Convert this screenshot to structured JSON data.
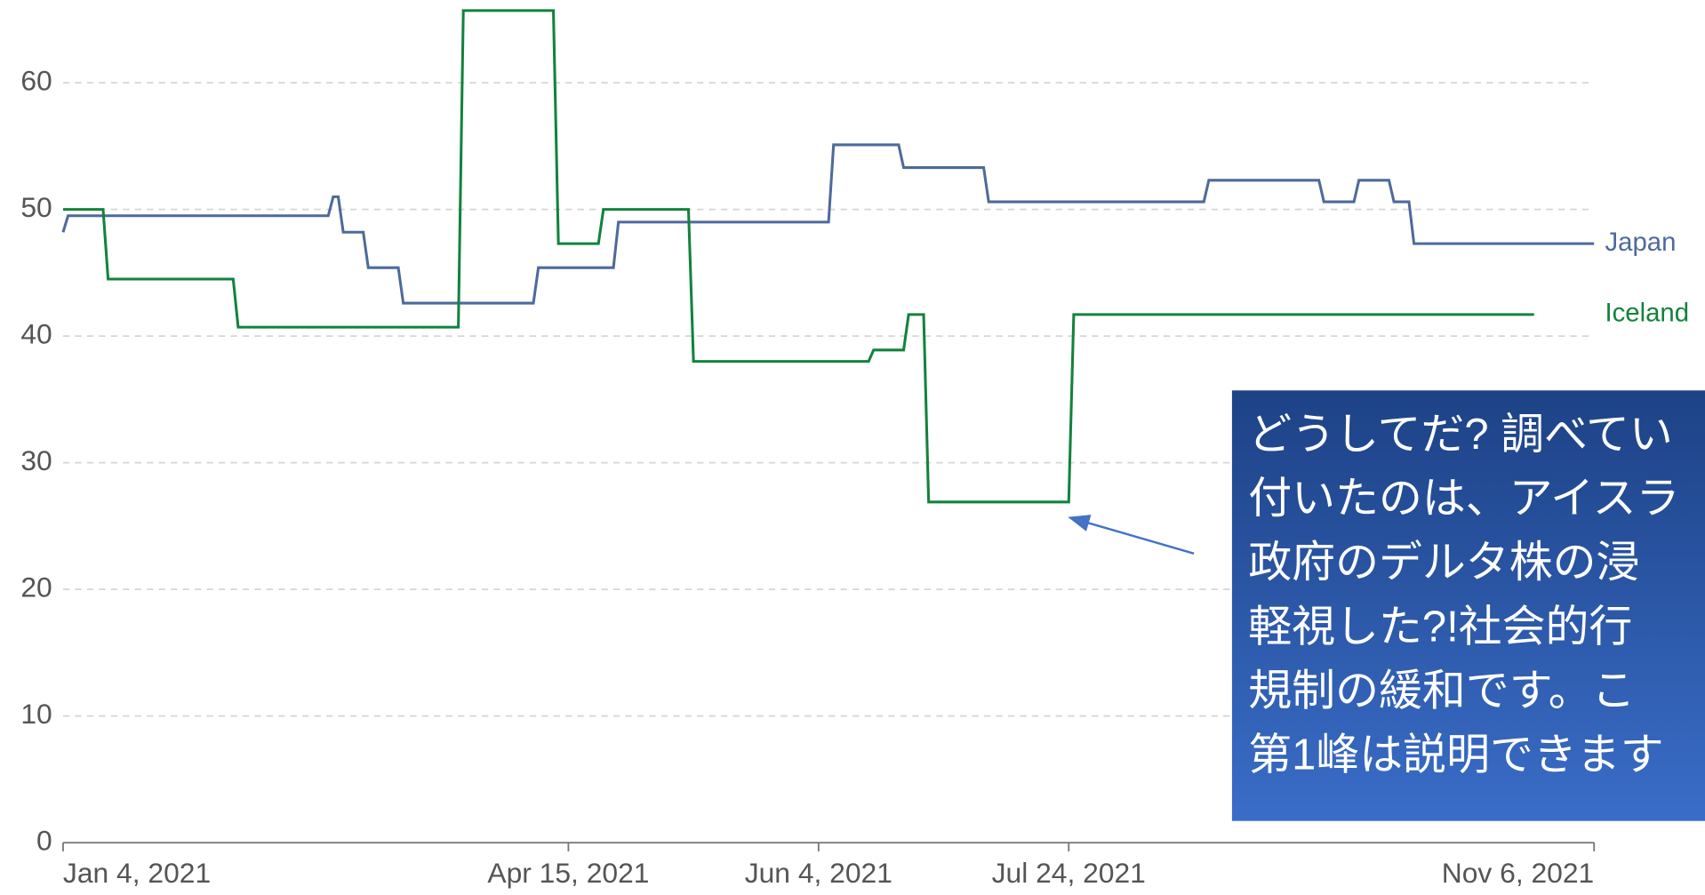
{
  "chart_data": {
    "type": "line",
    "xlim": [
      "2021-01-04",
      "2021-11-06"
    ],
    "xticks": [
      {
        "value": "2021-01-04",
        "label": "Jan 4, 2021"
      },
      {
        "value": "2021-04-15",
        "label": "Apr 15, 2021"
      },
      {
        "value": "2021-06-04",
        "label": "Jun 4, 2021"
      },
      {
        "value": "2021-07-24",
        "label": "Jul 24, 2021"
      },
      {
        "value": "2021-11-06",
        "label": "Nov 6, 2021"
      }
    ],
    "ylim": [
      0,
      66
    ],
    "yticks": [
      0,
      10,
      20,
      30,
      40,
      50,
      60
    ],
    "grid": true,
    "series": [
      {
        "name": "Japan",
        "color": "#4e6a9c",
        "x": [
          "2021-01-04",
          "2021-01-05",
          "2021-02-26",
          "2021-02-27",
          "2021-02-28",
          "2021-03-01",
          "2021-03-05",
          "2021-03-06",
          "2021-03-12",
          "2021-03-13",
          "2021-04-08",
          "2021-04-09",
          "2021-04-24",
          "2021-04-25",
          "2021-06-06",
          "2021-06-07",
          "2021-06-20",
          "2021-06-21",
          "2021-07-07",
          "2021-07-08",
          "2021-08-20",
          "2021-08-21",
          "2021-09-12",
          "2021-09-13",
          "2021-09-19",
          "2021-09-20",
          "2021-09-26",
          "2021-09-27",
          "2021-09-30",
          "2021-10-01",
          "2021-11-06"
        ],
        "values": [
          48.2,
          49.5,
          49.5,
          51,
          51,
          48.2,
          48.2,
          45.4,
          45.4,
          42.6,
          42.6,
          45.4,
          45.4,
          49,
          49,
          55.1,
          55.1,
          53.3,
          53.3,
          50.6,
          50.6,
          52.3,
          52.3,
          50.6,
          50.6,
          52.3,
          52.3,
          50.6,
          50.6,
          47.3,
          47.3
        ]
      },
      {
        "name": "Iceland",
        "color": "#13823e",
        "x": [
          "2021-01-04",
          "2021-01-12",
          "2021-01-13",
          "2021-02-07",
          "2021-02-08",
          "2021-03-24",
          "2021-03-25",
          "2021-04-12",
          "2021-04-13",
          "2021-04-21",
          "2021-04-22",
          "2021-05-09",
          "2021-05-10",
          "2021-06-14",
          "2021-06-15",
          "2021-06-21",
          "2021-06-22",
          "2021-06-25",
          "2021-06-26",
          "2021-07-24",
          "2021-07-25",
          "2021-10-25"
        ],
        "values": [
          50,
          50,
          44.5,
          44.5,
          40.7,
          40.7,
          65.7,
          65.7,
          47.3,
          47.3,
          50,
          50,
          38,
          38,
          38.9,
          38.9,
          41.7,
          41.7,
          26.9,
          26.9,
          41.7,
          41.7
        ]
      }
    ],
    "annotation": {
      "lines": [
        "どうしてだ? 調べてい",
        "付いたのは、アイスラ",
        "政府のデルタ株の浸",
        "軽視した?!社会的行",
        "規制の緩和です。こ",
        "第1峰は説明できます"
      ]
    }
  }
}
